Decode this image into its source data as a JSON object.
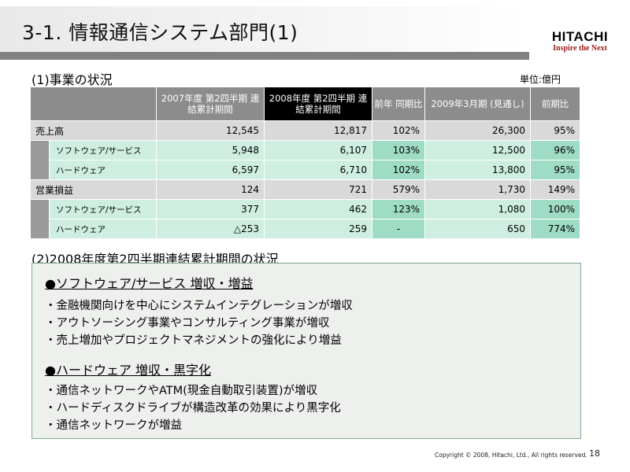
{
  "header": {
    "title": "3-1. 情報通信システム部門(1)",
    "logo_name": "HITACHI",
    "logo_tagline": "Inspire the Next"
  },
  "section1": {
    "heading": "(1)事業の状況",
    "unit": "単位:億円",
    "columns": [
      "2007年度 第2四半期 連結累計期間",
      "2008年度 第2四半期 連結累計期間",
      "前年 同期比",
      "2009年3月期 (見通し)",
      "前期比"
    ],
    "rows": [
      {
        "label": "売上高",
        "c1": "12,545",
        "c2": "12,817",
        "c3": "102%",
        "c4": "26,300",
        "c5": "95%"
      },
      {
        "label": "ソフトウェア/サービス",
        "c1": "5,948",
        "c2": "6,107",
        "c3": "103%",
        "c4": "12,500",
        "c5": "96%"
      },
      {
        "label": "ハードウェア",
        "c1": "6,597",
        "c2": "6,710",
        "c3": "102%",
        "c4": "13,800",
        "c5": "95%"
      },
      {
        "label": "営業損益",
        "c1": "124",
        "c2": "721",
        "c3": "579%",
        "c4": "1,730",
        "c5": "149%"
      },
      {
        "label": "ソフトウェア/サービス",
        "c1": "377",
        "c2": "462",
        "c3": "123%",
        "c4": "1,080",
        "c5": "100%"
      },
      {
        "label": "ハードウェア",
        "c1": "△253",
        "c2": "259",
        "c3": "-",
        "c4": "650",
        "c5": "774%"
      }
    ]
  },
  "section2": {
    "heading": "(2)2008年度第2四半期連結累計期間の状況",
    "topics": [
      {
        "title": "●ソフトウェア/サービス 増収・増益",
        "bullets": [
          "・金融機関向けを中心にシステムインテグレーションが増収",
          "・アウトソーシング事業やコンサルティング事業が増収",
          "・売上増加やプロジェクトマネジメントの強化により増益"
        ]
      },
      {
        "title": "●ハードウェア 増収・黒字化",
        "bullets": [
          "・通信ネットワークやATM(現金自動取引装置)が増収",
          "・ハードディスクドライブが構造改革の効果により黒字化",
          "・通信ネットワークが増益"
        ]
      }
    ]
  },
  "footer": {
    "copyright": "Copyright © 2008, Hitachi, Ltd., All rights reserved.",
    "page": "18"
  }
}
